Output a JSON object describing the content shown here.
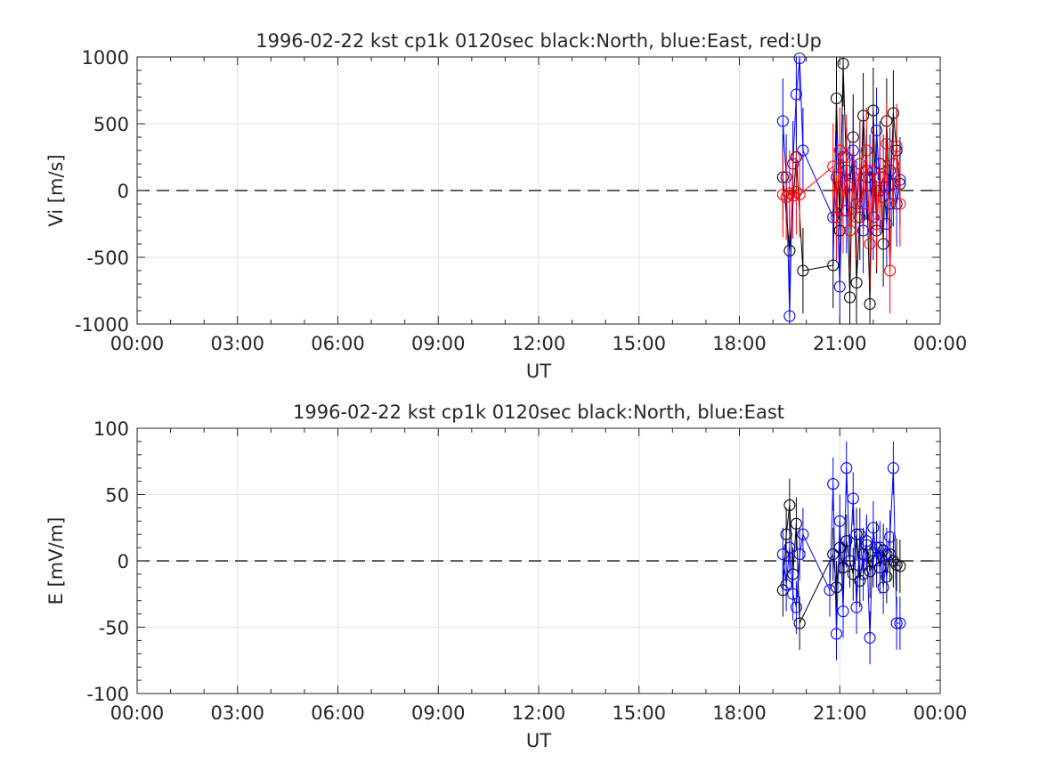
{
  "chart_data": [
    {
      "type": "scatter",
      "title": "1996-02-22 kst cp1k 0120sec black:North, blue:East, red:Up",
      "xlabel": "UT",
      "ylabel": "Vi [m/s]",
      "xlim": [
        0,
        24
      ],
      "ylim": [
        -1000,
        1000
      ],
      "x_tick_labels": [
        "00:00",
        "03:00",
        "06:00",
        "09:00",
        "12:00",
        "15:00",
        "18:00",
        "21:00",
        "00:00"
      ],
      "y_tick_labels": [
        "1000",
        "500",
        "0",
        "-500",
        "-1000"
      ],
      "y_tick_values": [
        1000,
        500,
        0,
        -500,
        -1000
      ],
      "grid": true,
      "reference_line": 0,
      "series": [
        {
          "name": "North",
          "color": "#000000",
          "x": [
            19.3,
            19.5,
            19.7,
            19.9,
            20.8,
            20.9,
            21.0,
            21.1,
            21.2,
            21.3,
            21.4,
            21.5,
            21.6,
            21.7,
            21.8,
            21.9,
            22.0,
            22.1,
            22.2,
            22.3,
            22.4,
            22.5,
            22.6,
            22.7,
            22.8
          ],
          "y": [
            100,
            -450,
            250,
            -600,
            -560,
            690,
            -300,
            950,
            150,
            -800,
            400,
            -690,
            -200,
            560,
            100,
            -850,
            600,
            -300,
            200,
            -400,
            520,
            -100,
            580,
            300,
            50
          ]
        },
        {
          "name": "East",
          "color": "#0000ff",
          "x": [
            19.3,
            19.4,
            19.5,
            19.6,
            19.7,
            19.8,
            19.9,
            20.8,
            20.9,
            21.0,
            21.1,
            21.2,
            21.3,
            21.4,
            21.5,
            21.6,
            21.7,
            21.8,
            21.9,
            22.0,
            22.1,
            22.2,
            22.3,
            22.4,
            22.5,
            22.6,
            22.7,
            22.8
          ],
          "y": [
            520,
            100,
            -940,
            200,
            720,
            990,
            300,
            -200,
            100,
            -720,
            250,
            -150,
            50,
            300,
            -100,
            200,
            -300,
            150,
            100,
            -200,
            450,
            0,
            100,
            -250,
            150,
            50,
            -100,
            80
          ]
        },
        {
          "name": "Up",
          "color": "#ff0000",
          "x": [
            19.3,
            19.4,
            19.5,
            19.6,
            19.7,
            19.8,
            20.8,
            20.9,
            21.0,
            21.1,
            21.2,
            21.3,
            21.4,
            21.5,
            21.6,
            21.7,
            21.8,
            21.9,
            22.0,
            22.1,
            22.2,
            22.3,
            22.4,
            22.5,
            22.6,
            22.7,
            22.8
          ],
          "y": [
            -30,
            -50,
            -20,
            -40,
            -10,
            -30,
            180,
            -200,
            300,
            -150,
            250,
            -300,
            100,
            -200,
            200,
            -100,
            300,
            -400,
            150,
            -250,
            100,
            -50,
            350,
            -600,
            200,
            330,
            -100
          ]
        }
      ]
    },
    {
      "type": "scatter",
      "title": "1996-02-22 kst cp1k 0120sec black:North, blue:East",
      "xlabel": "UT",
      "ylabel": "E [mV/m]",
      "xlim": [
        0,
        24
      ],
      "ylim": [
        -100,
        100
      ],
      "x_tick_labels": [
        "00:00",
        "03:00",
        "06:00",
        "09:00",
        "12:00",
        "15:00",
        "18:00",
        "21:00",
        "00:00"
      ],
      "y_tick_labels": [
        "100",
        "50",
        "0",
        "-50",
        "-100"
      ],
      "y_tick_values": [
        100,
        50,
        0,
        -50,
        -100
      ],
      "grid": true,
      "reference_line": 0,
      "series": [
        {
          "name": "North",
          "color": "#000000",
          "x": [
            19.3,
            19.4,
            19.5,
            19.6,
            19.7,
            19.8,
            20.8,
            20.9,
            21.0,
            21.1,
            21.2,
            21.3,
            21.4,
            21.5,
            21.6,
            21.7,
            21.8,
            21.9,
            22.0,
            22.1,
            22.2,
            22.3,
            22.4,
            22.5,
            22.6,
            22.7,
            22.8
          ],
          "y": [
            -22,
            20,
            42,
            -10,
            28,
            -47,
            5,
            -20,
            10,
            -5,
            15,
            0,
            -10,
            20,
            -15,
            5,
            12,
            -8,
            0,
            10,
            -5,
            8,
            -12,
            5,
            0,
            -3,
            -4
          ]
        },
        {
          "name": "East",
          "color": "#0000ff",
          "x": [
            19.3,
            19.4,
            19.5,
            19.6,
            19.7,
            19.8,
            19.9,
            20.7,
            20.8,
            20.9,
            21.0,
            21.1,
            21.2,
            21.3,
            21.4,
            21.5,
            21.6,
            21.7,
            21.8,
            21.9,
            22.0,
            22.1,
            22.2,
            22.3,
            22.4,
            22.5,
            22.6,
            22.7,
            22.8
          ],
          "y": [
            5,
            -18,
            10,
            -25,
            -35,
            5,
            20,
            -22,
            58,
            -55,
            30,
            -38,
            70,
            0,
            47,
            -35,
            20,
            -10,
            15,
            -58,
            25,
            0,
            10,
            -20,
            5,
            18,
            70,
            -47,
            -47
          ]
        }
      ]
    }
  ]
}
